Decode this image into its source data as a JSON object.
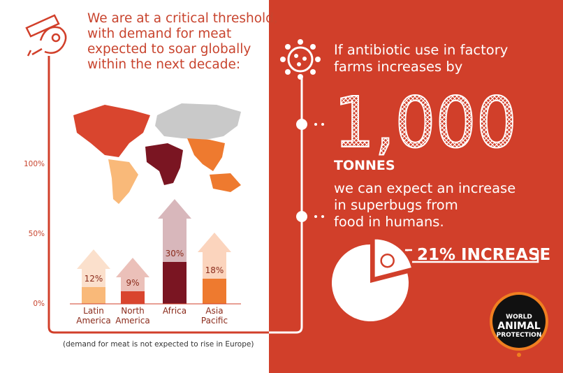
{
  "left": {
    "heading_lines": [
      "We are at a critical threshold,",
      "with demand for meat",
      "expected to soar globally",
      "within the next decade:"
    ],
    "footnote": "(demand for meat is not expected to rise in Europe)"
  },
  "right": {
    "intro_lines": [
      "If antibiotic use in factory",
      "farms increases by"
    ],
    "amount": "1,000",
    "unit": "TONNES",
    "outcome_lines": [
      "we can expect an increase",
      "in superbugs from",
      "food in humans."
    ]
  },
  "logo": {
    "lines": [
      "WORLD",
      "ANIMAL",
      "PROTECTION"
    ]
  },
  "chart_data": [
    {
      "type": "bar",
      "categories": [
        "Latin America",
        "North America",
        "Africa",
        "Asia Pacific"
      ],
      "values": [
        12,
        9,
        30,
        18
      ],
      "value_labels": [
        "12%",
        "9%",
        "30%",
        "18%"
      ],
      "colors": [
        "#f9b979",
        "#d9452e",
        "#7a1522",
        "#ee7a2f"
      ],
      "ylim": [
        0,
        100
      ],
      "yticks": [
        {
          "value": 0,
          "label": "0%"
        },
        {
          "value": 50,
          "label": "50%"
        },
        {
          "value": 100,
          "label": "100%"
        }
      ]
    },
    {
      "type": "pie",
      "values": [
        21
      ],
      "value_labels": [
        "21% INCREASE"
      ],
      "color": "#ffffff"
    }
  ]
}
